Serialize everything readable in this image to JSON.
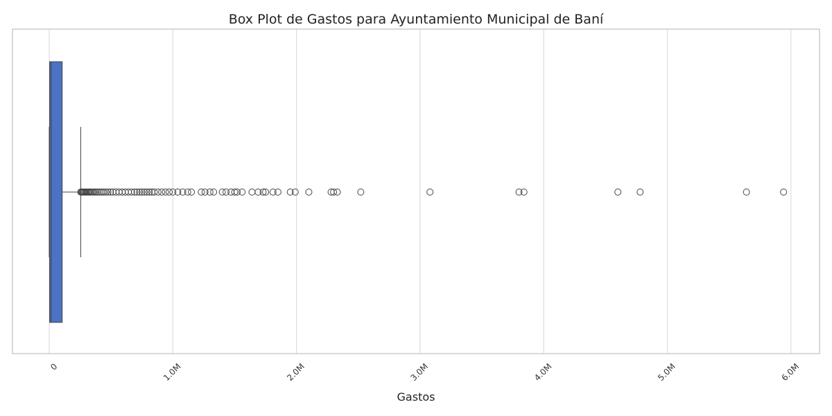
{
  "chart_data": {
    "type": "box",
    "title": "Box Plot de Gastos para Ayuntamiento Municipal de Baní",
    "xlabel": "Gastos",
    "ylabel": "",
    "orientation": "horizontal",
    "xlim": [
      -300000,
      6250000
    ],
    "xticks": [
      0,
      1000000,
      2000000,
      3000000,
      4000000,
      5000000,
      6000000
    ],
    "xtick_labels": [
      "0",
      "1.0M",
      "2.0M",
      "3.0M",
      "4.0M",
      "5.0M",
      "6.0M"
    ],
    "grid": "vertical",
    "box": {
      "min": 0,
      "q1": 3000,
      "median": 15000,
      "q3": 105000,
      "whisker_low": 0,
      "whisker_high": 255000
    },
    "outliers": [
      255000,
      262000,
      268000,
      275000,
      282000,
      290000,
      298000,
      306000,
      315000,
      325000,
      335000,
      345000,
      355000,
      368000,
      380000,
      395000,
      410000,
      425000,
      440000,
      458000,
      475000,
      495000,
      515000,
      540000,
      565000,
      590000,
      615000,
      640000,
      665000,
      690000,
      710000,
      730000,
      750000,
      770000,
      790000,
      810000,
      830000,
      850000,
      880000,
      910000,
      940000,
      970000,
      1000000,
      1040000,
      1080000,
      1120000,
      1150000,
      1230000,
      1260000,
      1300000,
      1330000,
      1400000,
      1430000,
      1470000,
      1500000,
      1520000,
      1560000,
      1640000,
      1690000,
      1730000,
      1750000,
      1810000,
      1850000,
      1950000,
      1990000,
      2100000,
      2280000,
      2300000,
      2330000,
      2520000,
      3080000,
      3800000,
      3840000,
      4600000,
      4780000,
      5640000,
      5940000
    ],
    "colors": {
      "box_fill": "#4c72c4",
      "line": "#444444",
      "grid": "#dddddd",
      "frame": "#cccccc"
    }
  }
}
